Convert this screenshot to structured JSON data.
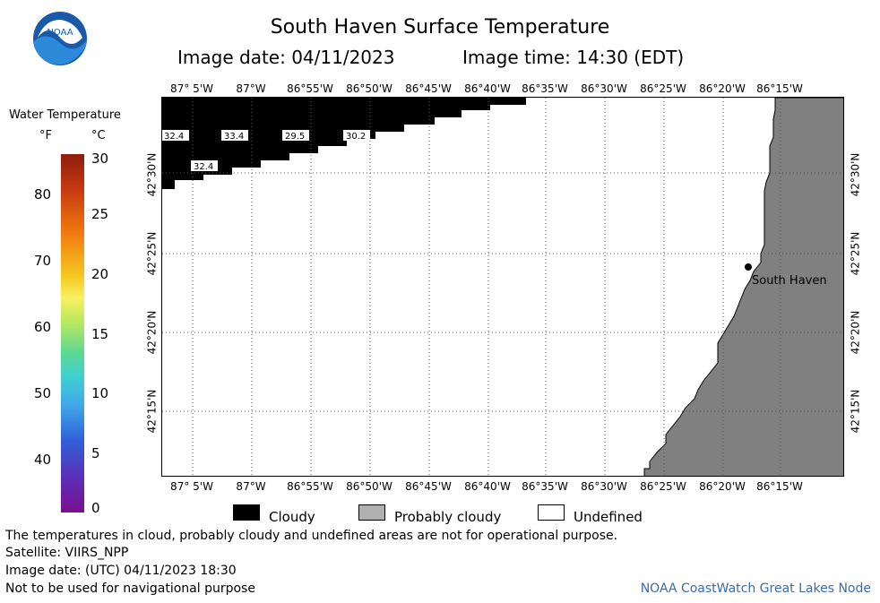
{
  "header": {
    "title": "South Haven Surface Temperature",
    "image_date": "Image date: 04/11/2023",
    "image_time": "Image time: 14:30 (EDT)"
  },
  "longitude_labels": [
    "87° 5'W",
    "87°W",
    "86°55'W",
    "86°50'W",
    "86°45'W",
    "86°40'W",
    "86°35'W",
    "86°30'W",
    "86°25'W",
    "86°20'W",
    "86°15'W"
  ],
  "latitude_labels": [
    "42°30'N",
    "42°25'N",
    "42°20'N",
    "42°15'N"
  ],
  "map": {
    "location_label": "South Haven",
    "temperature_labels": [
      "32.4",
      "33.4",
      "29.5",
      "30.2",
      "32.4"
    ],
    "colors": {
      "cloudy": "#000000",
      "probably_cloudy": "#808080",
      "undefined": "#ffffff",
      "grid": "#555555"
    }
  },
  "color_scale": {
    "title": "Water Temperature",
    "unit_f": "°F",
    "unit_c": "°C",
    "fahrenheit_ticks": [
      "80",
      "70",
      "60",
      "50",
      "40"
    ],
    "celsius_ticks": [
      "30",
      "25",
      "20",
      "15",
      "10",
      "5",
      "0"
    ]
  },
  "legend": {
    "cloudy": "Cloudy",
    "probably_cloudy": "Probably cloudy",
    "undefined": "Undefined"
  },
  "footer": {
    "disclaimer": "The temperatures in cloud, probably cloudy and undefined areas are not for operational purpose.",
    "satellite": "Satellite: VIIRS_NPP",
    "utc_date": "Image date: (UTC) 04/11/2023  18:30",
    "navigation": "Not to be used for navigational purpose",
    "credit": "NOAA CoastWatch Great Lakes Node"
  },
  "logo": {
    "text": "NOAA"
  }
}
